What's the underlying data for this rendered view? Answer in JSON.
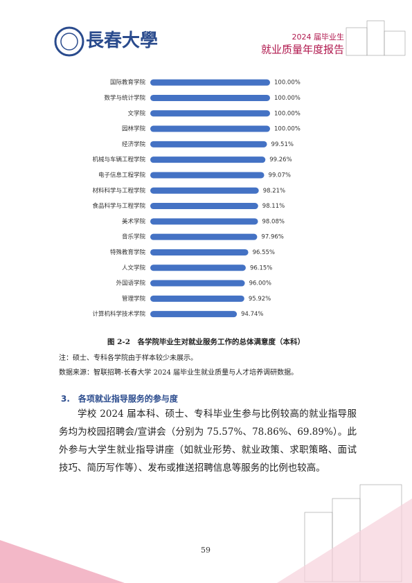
{
  "header": {
    "logo_text": "長春大學",
    "year_line": "2024 届毕业生",
    "report_title": "就业质量年度报告"
  },
  "chart_data": {
    "type": "bar",
    "orientation": "horizontal",
    "color": "#4472c4",
    "categories": [
      "国际教育学院",
      "数学与统计学院",
      "文学院",
      "园林学院",
      "经济学院",
      "机械与车辆工程学院",
      "电子信息工程学院",
      "材料科学与工程学院",
      "食品科学与工程学院",
      "美术学院",
      "音乐学院",
      "特殊教育学院",
      "人文学院",
      "外国语学院",
      "管理学院",
      "计算机科学技术学院"
    ],
    "values": [
      100.0,
      100.0,
      100.0,
      100.0,
      99.51,
      99.26,
      99.07,
      98.21,
      98.11,
      98.08,
      97.96,
      96.55,
      96.15,
      96.0,
      95.92,
      94.74
    ],
    "value_labels": [
      "100.00%",
      "100.00%",
      "100.00%",
      "100.00%",
      "99.51%",
      "99.26%",
      "99.07%",
      "98.21%",
      "98.11%",
      "98.08%",
      "97.96%",
      "96.55%",
      "96.15%",
      "96.00%",
      "95.92%",
      "94.74%"
    ],
    "xlim": [
      81,
      100
    ]
  },
  "figure": {
    "caption": "图 2-2　各学院毕业生对就业服务工作的总体满意度（本科）",
    "note": "注：硕士、专科各学院由于样本较少未展示。",
    "source": "数据来源：智联招聘-长春大学 2024 届毕业生就业质量与人才培养调研数据。"
  },
  "section": {
    "heading": "3.　各项就业指导服务的参与度",
    "paragraph": "学校 2024 届本科、硕士、专科毕业生参与比例较高的就业指导服务均为校园招聘会/宣讲会（分别为 75.57%、78.86%、69.89%）。此外参与大学生就业指导讲座（如就业形势、就业政策、求职策略、面试技巧、简历写作等）、发布或推送招聘信息等服务的比例也较高。"
  },
  "footer": {
    "page_number": "59"
  }
}
